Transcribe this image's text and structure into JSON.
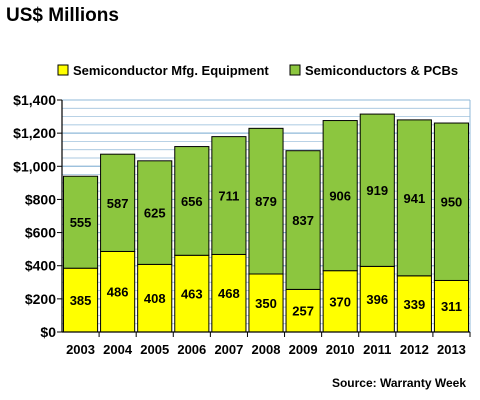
{
  "chart_data": {
    "type": "bar",
    "stacked": true,
    "title": "US$ Millions",
    "source": "Source: Warranty Week",
    "categories": [
      "2003",
      "2004",
      "2005",
      "2006",
      "2007",
      "2008",
      "2009",
      "2010",
      "2011",
      "2012",
      "2013"
    ],
    "series": [
      {
        "name": "Semiconductor Mfg. Equipment",
        "color": "#ffff00",
        "values": [
          385,
          486,
          408,
          463,
          468,
          350,
          257,
          370,
          396,
          339,
          311
        ]
      },
      {
        "name": "Semiconductors & PCBs",
        "color": "#8cc63f",
        "values": [
          555,
          587,
          625,
          656,
          711,
          879,
          837,
          906,
          919,
          941,
          950
        ]
      }
    ],
    "ylim": [
      0,
      1400
    ],
    "yticks": [
      0,
      200,
      400,
      600,
      800,
      1000,
      1200,
      1400
    ],
    "ytick_labels": [
      "$0",
      "$200",
      "$400",
      "$600",
      "$800",
      "$1,000",
      "$1,200",
      "$1,400"
    ],
    "grid": true,
    "legend_position": "top",
    "colors": {
      "plot_background": "#ffffff",
      "grid": "#8fb8d8",
      "axis": "#000000"
    }
  }
}
